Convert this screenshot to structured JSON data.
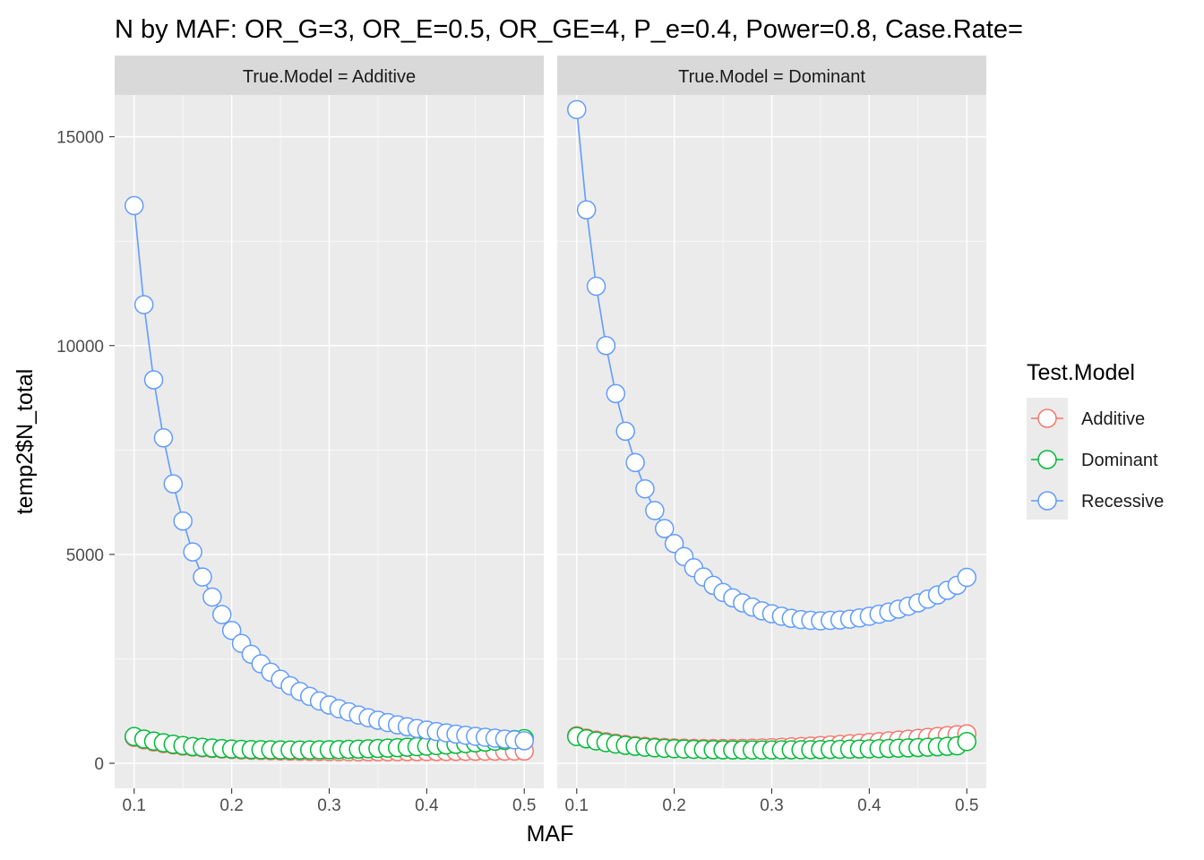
{
  "chart_data": {
    "type": "line",
    "title": "N by MAF: OR_G=3, OR_E=0.5, OR_GE=4, P_e=0.4, Power=0.8, Case.Rate=",
    "xlabel": "MAF",
    "ylabel": "temp2$N_total",
    "xlim": [
      0.08,
      0.52
    ],
    "ylim": [
      -600,
      16000
    ],
    "x_ticks": [
      "0.1",
      "0.2",
      "0.3",
      "0.4",
      "0.5"
    ],
    "y_ticks": [
      "0",
      "5000",
      "10000",
      "15000"
    ],
    "x_tick_values": [
      0.1,
      0.2,
      0.3,
      0.4,
      0.5
    ],
    "y_tick_values": [
      0,
      5000,
      10000,
      15000
    ],
    "grid": true,
    "x": [
      0.1,
      0.11,
      0.12,
      0.13,
      0.14,
      0.15,
      0.16,
      0.17,
      0.18,
      0.19,
      0.2,
      0.21,
      0.22,
      0.23,
      0.24,
      0.25,
      0.26,
      0.27,
      0.28,
      0.29,
      0.3,
      0.31,
      0.32,
      0.33,
      0.34,
      0.35,
      0.36,
      0.37,
      0.38,
      0.39,
      0.4,
      0.41,
      0.42,
      0.43,
      0.44,
      0.45,
      0.46,
      0.47,
      0.48,
      0.49,
      0.5
    ],
    "legend": {
      "title": "Test.Model",
      "position": "right",
      "entries": [
        "Additive",
        "Dominant",
        "Recessive"
      ]
    },
    "colors": {
      "Additive": "#F8766D",
      "Dominant": "#00BA38",
      "Recessive": "#619CFF"
    },
    "panels": [
      {
        "strip": "True.Model = Additive",
        "series": [
          {
            "name": "Additive",
            "values": [
              620,
              560,
              510,
              470,
              440,
              410,
              390,
              370,
              355,
              340,
              330,
              320,
              312,
              305,
              299,
              294,
              290,
              287,
              284,
              282,
              280,
              279,
              278,
              277,
              277,
              277,
              277,
              278,
              279,
              280,
              281,
              282,
              283,
              285,
              286,
              288,
              289,
              290,
              291,
              292,
              293
            ]
          },
          {
            "name": "Dominant",
            "values": [
              640,
              580,
              530,
              490,
              455,
              425,
              400,
              380,
              365,
              352,
              342,
              334,
              328,
              324,
              321,
              319,
              318,
              318,
              319,
              321,
              324,
              328,
              333,
              339,
              346,
              354,
              363,
              373,
              384,
              396,
              409,
              423,
              438,
              454,
              471,
              489,
              508,
              528,
              548,
              568,
              590
            ]
          },
          {
            "name": "Recessive",
            "values": [
              13350,
              10980,
              9180,
              7790,
              6690,
              5800,
              5060,
              4460,
              3980,
              3560,
              3180,
              2870,
              2610,
              2380,
              2180,
              2010,
              1855,
              1720,
              1600,
              1490,
              1395,
              1305,
              1230,
              1155,
              1090,
              1030,
              975,
              920,
              875,
              832,
              795,
              760,
              728,
              698,
              670,
              645,
              622,
              600,
              580,
              560,
              540
            ]
          }
        ]
      },
      {
        "strip": "True.Model = Dominant",
        "series": [
          {
            "name": "Additive",
            "values": [
              660,
              605,
              555,
              515,
              480,
              450,
              425,
              405,
              390,
              378,
              368,
              362,
              358,
              355,
              354,
              354,
              355,
              358,
              362,
              367,
              374,
              382,
              391,
              401,
              412,
              424,
              437,
              451,
              466,
              482,
              499,
              517,
              536,
              556,
              576,
              597,
              619,
              641,
              663,
              685,
              705
            ]
          },
          {
            "name": "Dominant",
            "values": [
              640,
              585,
              535,
              495,
              460,
              430,
              405,
              385,
              370,
              358,
              348,
              340,
              334,
              329,
              325,
              322,
              320,
              319,
              319,
              319,
              320,
              321,
              322,
              324,
              326,
              328,
              331,
              334,
              337,
              341,
              345,
              350,
              355,
              361,
              368,
              376,
              385,
              395,
              406,
              418,
              520
            ]
          },
          {
            "name": "Recessive",
            "values": [
              15650,
              13250,
              11420,
              10000,
              8850,
              7950,
              7200,
              6570,
              6050,
              5620,
              5260,
              4950,
              4680,
              4460,
              4260,
              4090,
              3960,
              3840,
              3740,
              3650,
              3580,
              3520,
              3470,
              3440,
              3420,
              3410,
              3420,
              3430,
              3450,
              3480,
              3520,
              3570,
              3620,
              3690,
              3760,
              3840,
              3930,
              4030,
              4140,
              4260,
              4450
            ]
          }
        ]
      }
    ]
  }
}
